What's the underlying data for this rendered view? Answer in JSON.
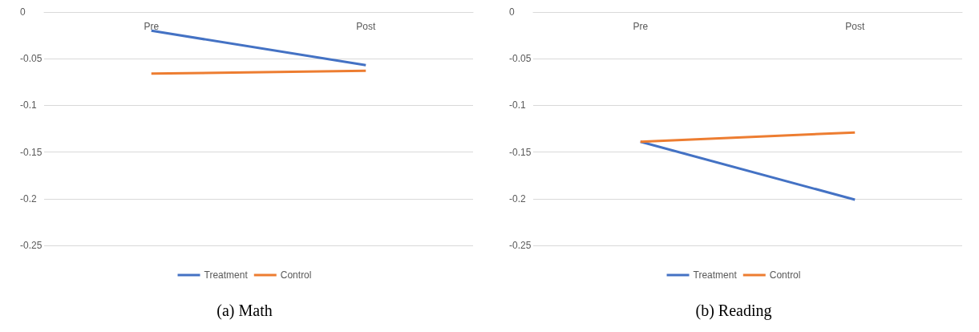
{
  "chart_data": [
    {
      "type": "line",
      "title": "(a) Math",
      "categories": [
        "Pre",
        "Post"
      ],
      "series": [
        {
          "name": "Treatment",
          "color": "#4472c4",
          "values": [
            -0.02,
            -0.057
          ]
        },
        {
          "name": "Control",
          "color": "#ed7d31",
          "values": [
            -0.066,
            -0.063
          ]
        }
      ],
      "ylim": [
        -0.25,
        0
      ],
      "yticks": [
        -0.25,
        -0.2,
        -0.15,
        -0.1,
        -0.05,
        0
      ],
      "grid": "y",
      "legend": "bottom",
      "marker": "none"
    },
    {
      "type": "line",
      "title": "(b) Reading",
      "categories": [
        "Pre",
        "Post"
      ],
      "series": [
        {
          "name": "Treatment",
          "color": "#4472c4",
          "values": [
            -0.139,
            -0.201
          ]
        },
        {
          "name": "Control",
          "color": "#ed7d31",
          "values": [
            -0.139,
            -0.129
          ]
        }
      ],
      "ylim": [
        -0.25,
        0
      ],
      "yticks": [
        -0.25,
        -0.2,
        -0.15,
        -0.1,
        -0.05,
        0
      ],
      "grid": "y",
      "legend": "bottom",
      "marker": "none"
    }
  ]
}
